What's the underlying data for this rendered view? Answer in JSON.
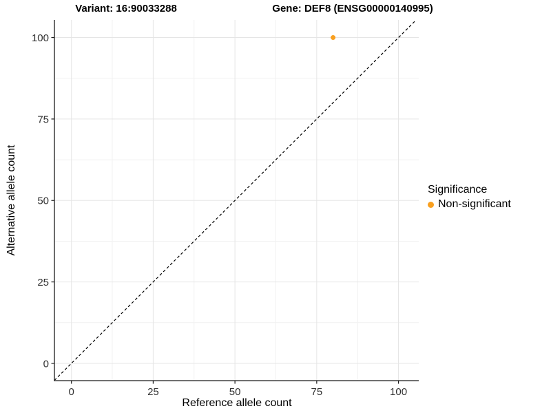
{
  "chart_data": {
    "type": "scatter",
    "title_variant": "Variant: 16:90033288",
    "title_gene": "Gene: DEF8 (ENSG00000140995)",
    "xlabel": "Reference allele count",
    "ylabel": "Alternative allele count",
    "xlim": [
      -5.2,
      106.2
    ],
    "ylim": [
      -5.3,
      105.4
    ],
    "xticks": [
      0,
      25,
      50,
      75,
      100
    ],
    "yticks": [
      0,
      25,
      50,
      75,
      100
    ],
    "grid": {
      "major": true,
      "minor": true
    },
    "identity_line": {
      "style": "dashed",
      "slope": 1,
      "intercept": 0,
      "color": "#000000"
    },
    "points": [
      {
        "x": 80,
        "y": 100,
        "series": "Non-significant"
      }
    ],
    "legend": {
      "position": "right",
      "title": "Significance",
      "items": [
        {
          "label": "Non-significant",
          "color": "#F9A020"
        }
      ]
    },
    "colors": {
      "background": "#ffffff",
      "major_grid": "#e5e5e5",
      "minor_grid": "#f1f1f1",
      "axis": "#1a1a1a",
      "tick_label": "#303030"
    }
  }
}
